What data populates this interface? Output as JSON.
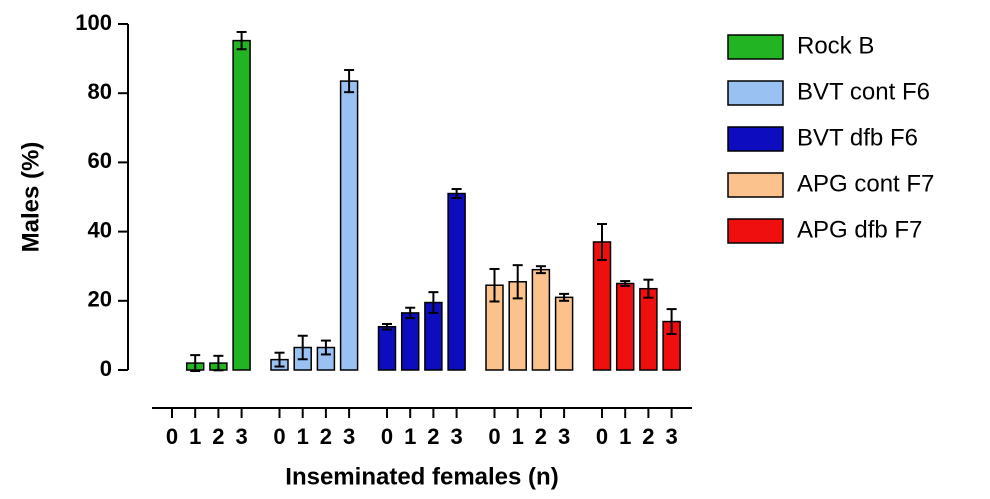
{
  "chart_data": {
    "type": "bar",
    "xlabel": "Inseminated females  (n)",
    "ylabel": "Males (%)",
    "categories": [
      "0",
      "1",
      "2",
      "3"
    ],
    "series": [
      {
        "name": "Rock B",
        "color": "#22b422",
        "values": [
          null,
          2,
          2,
          95.2
        ],
        "errors": [
          null,
          2.3,
          2.1,
          2.5
        ]
      },
      {
        "name": "BVT cont F6",
        "color": "#99c2f2",
        "values": [
          3,
          6.5,
          6.5,
          83.5
        ],
        "errors": [
          2,
          3.4,
          2,
          3.2
        ]
      },
      {
        "name": "BVT dfb F6",
        "color": "#0d0dbf",
        "values": [
          12.5,
          16.5,
          19.5,
          51
        ],
        "errors": [
          0.8,
          1.5,
          3,
          1.3
        ]
      },
      {
        "name": "APG cont F7",
        "color": "#fbc28e",
        "values": [
          24.5,
          25.5,
          29,
          21
        ],
        "errors": [
          4.7,
          4.8,
          1,
          1
        ]
      },
      {
        "name": "APG dfb F7",
        "color": "#f00f0f",
        "values": [
          37,
          25,
          23.5,
          14
        ],
        "errors": [
          5.2,
          0.7,
          2.6,
          3.6
        ]
      }
    ],
    "ylim": [
      0,
      100
    ],
    "yticks": [
      0,
      20,
      40,
      60,
      80,
      100
    ]
  }
}
